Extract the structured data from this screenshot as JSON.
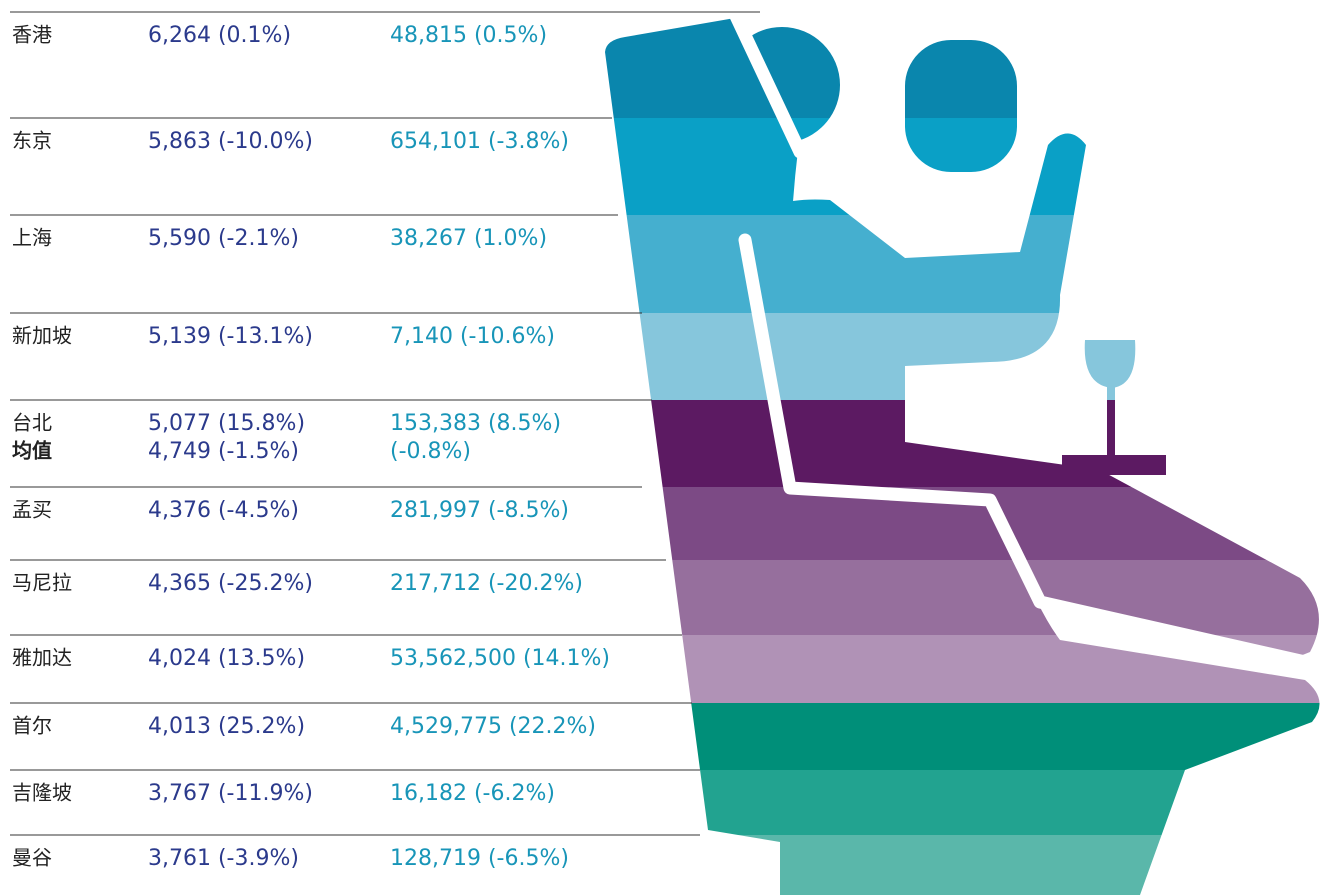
{
  "rows": [
    {
      "city": "香港",
      "usd": "6,264 (0.1%)",
      "local": "48,815 (0.5%)"
    },
    {
      "city": "东京",
      "usd": "5,863 (-10.0%)",
      "local": "654,101 (-3.8%)"
    },
    {
      "city": "上海",
      "usd": "5,590 (-2.1%)",
      "local": "38,267 (1.0%)"
    },
    {
      "city": "新加坡",
      "usd": "5,139 (-13.1%)",
      "local": "7,140 (-10.6%)"
    },
    {
      "city": "台北",
      "usd": "5,077 (15.8%)",
      "local": "153,383 (8.5%)"
    },
    {
      "city": "孟买",
      "usd": "4,376 (-4.5%)",
      "local": "281,997 (-8.5%)"
    },
    {
      "city": "马尼拉",
      "usd": "4,365 (-25.2%)",
      "local": "217,712 (-20.2%)"
    },
    {
      "city": "雅加达",
      "usd": "4,024 (13.5%)",
      "local": "53,562,500 (14.1%)"
    },
    {
      "city": "首尔",
      "usd": "4,013 (25.2%)",
      "local": "4,529,775 (22.2%)"
    },
    {
      "city": "吉隆坡",
      "usd": "3,767 (-11.9%)",
      "local": "16,182 (-6.2%)"
    },
    {
      "city": "曼谷",
      "usd": "3,761 (-3.9%)",
      "local": "128,719 (-6.5%)"
    }
  ],
  "average": {
    "label": "均值",
    "usd": "4,749 (-1.5%)",
    "local": "(-0.8%)"
  }
}
